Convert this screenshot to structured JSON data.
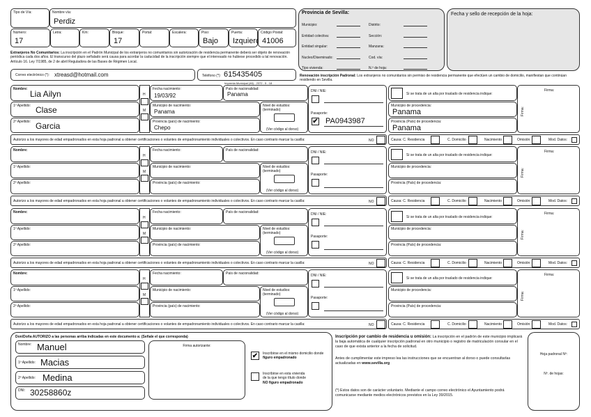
{
  "address": {
    "tipo_via_label": "Tipo de Vía:",
    "tipo_via": "",
    "nombre_via_label": "Nombre vía:",
    "nombre_via": "Perdiz",
    "numero_label": "Número:",
    "numero": "17",
    "letra_label": "Letra:",
    "letra": "",
    "km_label": "Km:",
    "km": "",
    "bloque_label": "Bloque:",
    "bloque": "17",
    "portal_label": "Portal:",
    "portal": "",
    "escalera_label": "Escalera:",
    "escalera": "",
    "piso_label": "Piso:",
    "piso": "Bajo",
    "puerta_label": "Puerta:",
    "puerta": "Izquierda",
    "cp_label": "Código Postal:",
    "cp": "41006"
  },
  "notice_bold": "Extranjeros No Comunitarios:",
  "notice": " La inscripción en el Padrón Municipal de los extranjeros no comunitarios sin autorización de residencia permanente deberá ser objeto de renovación periódica cada dos años. El transcurso del plazo señalado será causa para acordar la caducidad de la inscripción siempre que el interesado no hubiese procedido a tal renovación. Artículo 16. Ley 7/1985, de 2 de abril Reguladora de las Bases de Régimen Local.",
  "email_label": "Correo electrónico (*):",
  "email": "xtreasd@hotmail.com",
  "phone_label": "Teléfono (*):",
  "phone": "615435405",
  "imprenta": "Imprenta Municipal (46) - 2372 - 5 - 18",
  "provincia": {
    "title": "Provincia de Sevilla:",
    "fields": [
      "Municipio:",
      "Distrito:",
      "Entidad colectiva:",
      "Sección:",
      "Entidad singular:",
      "Manzana:",
      "Nucleo/Diseminado:",
      "Cod. vía:",
      "Tipo vivienda:",
      "N.º de hoja:"
    ]
  },
  "fecha_sello": "Fecha y sello de recepción de la hoja:",
  "renovacion_bold": "Renovación inscripción Padronal:",
  "renovacion": " Los extranjeros no comunitarios sin permiso de residencia permanente que efectúen un cambio de domicilio, manifiestan que continúan residiendo en Sevilla.",
  "labels": {
    "nombre": "Nombre:",
    "ap1": "1º Apellido:",
    "ap2": "2º Apellido:",
    "h": "H",
    "m": "M",
    "fecha": "Fecha nacimiento:",
    "pais": "País de nacionalidad:",
    "municipio": "Municipio de nacimiento:",
    "provincia": "Provincia (país) de nacimiento:",
    "nivel": "Nivel de estudios: (terminado)",
    "nivel_note": "(Ver código al dorso)",
    "dni": "DNI / NIE:",
    "pasaporte": "Pasaporte:",
    "traslado": "Si se trata de un alta por traslado de residencia indique:",
    "mun_proc": "Municipio de procedencia:",
    "prov_proc": "Provincia (País) de procedencia:",
    "firma": "Firma:",
    "autorizo": "Autorizo a los mayores de edad empadronados en esta hoja padronal a obtener certificaciones o volantes de empadronamiento individuales o colectivos. En caso contrario marcar la casilla:",
    "no": "NO",
    "causa": "Causa: C. Residencia",
    "c_domicilio": "C. Domicilio",
    "nacimiento": "Nacimiento",
    "omision": "Omisión:",
    "mod_datos": "Mod. Datos:"
  },
  "persons": [
    {
      "nombre": "Lia Ailyn",
      "ap1": "Clase",
      "ap2": "Garcia",
      "fecha": "19/03/92",
      "pais": "Panama",
      "municipio": "Panama",
      "provincia": "Chepo",
      "dni": "",
      "pasaporte": "PA0943987",
      "pasaporte_checked": "✔",
      "mun_proc": "Panama",
      "prov_proc": "Panama"
    },
    {
      "nombre": "",
      "ap1": "",
      "ap2": "",
      "fecha": "",
      "pais": "",
      "municipio": "",
      "provincia": "",
      "dni": "",
      "pasaporte": "",
      "pasaporte_checked": "",
      "mun_proc": "",
      "prov_proc": ""
    },
    {
      "nombre": "",
      "ap1": "",
      "ap2": "",
      "fecha": "",
      "pais": "",
      "municipio": "",
      "provincia": "",
      "dni": "",
      "pasaporte": "",
      "pasaporte_checked": "",
      "mun_proc": "",
      "prov_proc": ""
    },
    {
      "nombre": "",
      "ap1": "",
      "ap2": "",
      "fecha": "",
      "pais": "",
      "municipio": "",
      "provincia": "",
      "dni": "",
      "pasaporte": "",
      "pasaporte_checked": "",
      "mun_proc": "",
      "prov_proc": ""
    }
  ],
  "auth": {
    "title": "Don/Doña AUTORIZO a las personas arriba indicadas en este documento a: (Señale el que corresponda)",
    "nombre_label": "Nombre:",
    "nombre": "Manuel",
    "ap1_label": "1º Apellido:",
    "ap1": "Macias",
    "ap2_label": "2º Apellido:",
    "ap2": "Medina",
    "dni_label": "DNI:",
    "dni": "30258860z",
    "firma": "Firma autorizante:",
    "opt1_checked": "✔",
    "opt1": "Inscribirse en el mismo domicilio donde ",
    "opt1_bold": "figuro empadronado",
    "opt2_checked": "",
    "opt2": "Inscribirse en esta vivienda de la que tengo título donde ",
    "opt2_bold": "NO figuro empadronado"
  },
  "info": {
    "p1_bold": "Inscripción por cambio de residencia u omisión:",
    "p1": " La inscripción en el padrón de este municipio implicará la baja automática de cualquier inscripción padronal en otro municipio o registro de matriculación consular en el caso de que exista anterior a la fecha de solicitud.",
    "p2": "Antes de cumplimentar este impreso lea las instrucciones que se encuentran al dorso o puede consultarlas actualizadas en ",
    "p2_bold": "www.sevilla.org",
    "p3": "(*) Estos datos son de carácter voluntario. Mediante el campo correo electrónico el Ayuntamiento podrá comunicarse mediante medios electrónicos previstos en la Ley 39/2015."
  },
  "hoja_padronal": "Hoja padronal Nº:",
  "num_hojas": "Nº. de hojas:"
}
